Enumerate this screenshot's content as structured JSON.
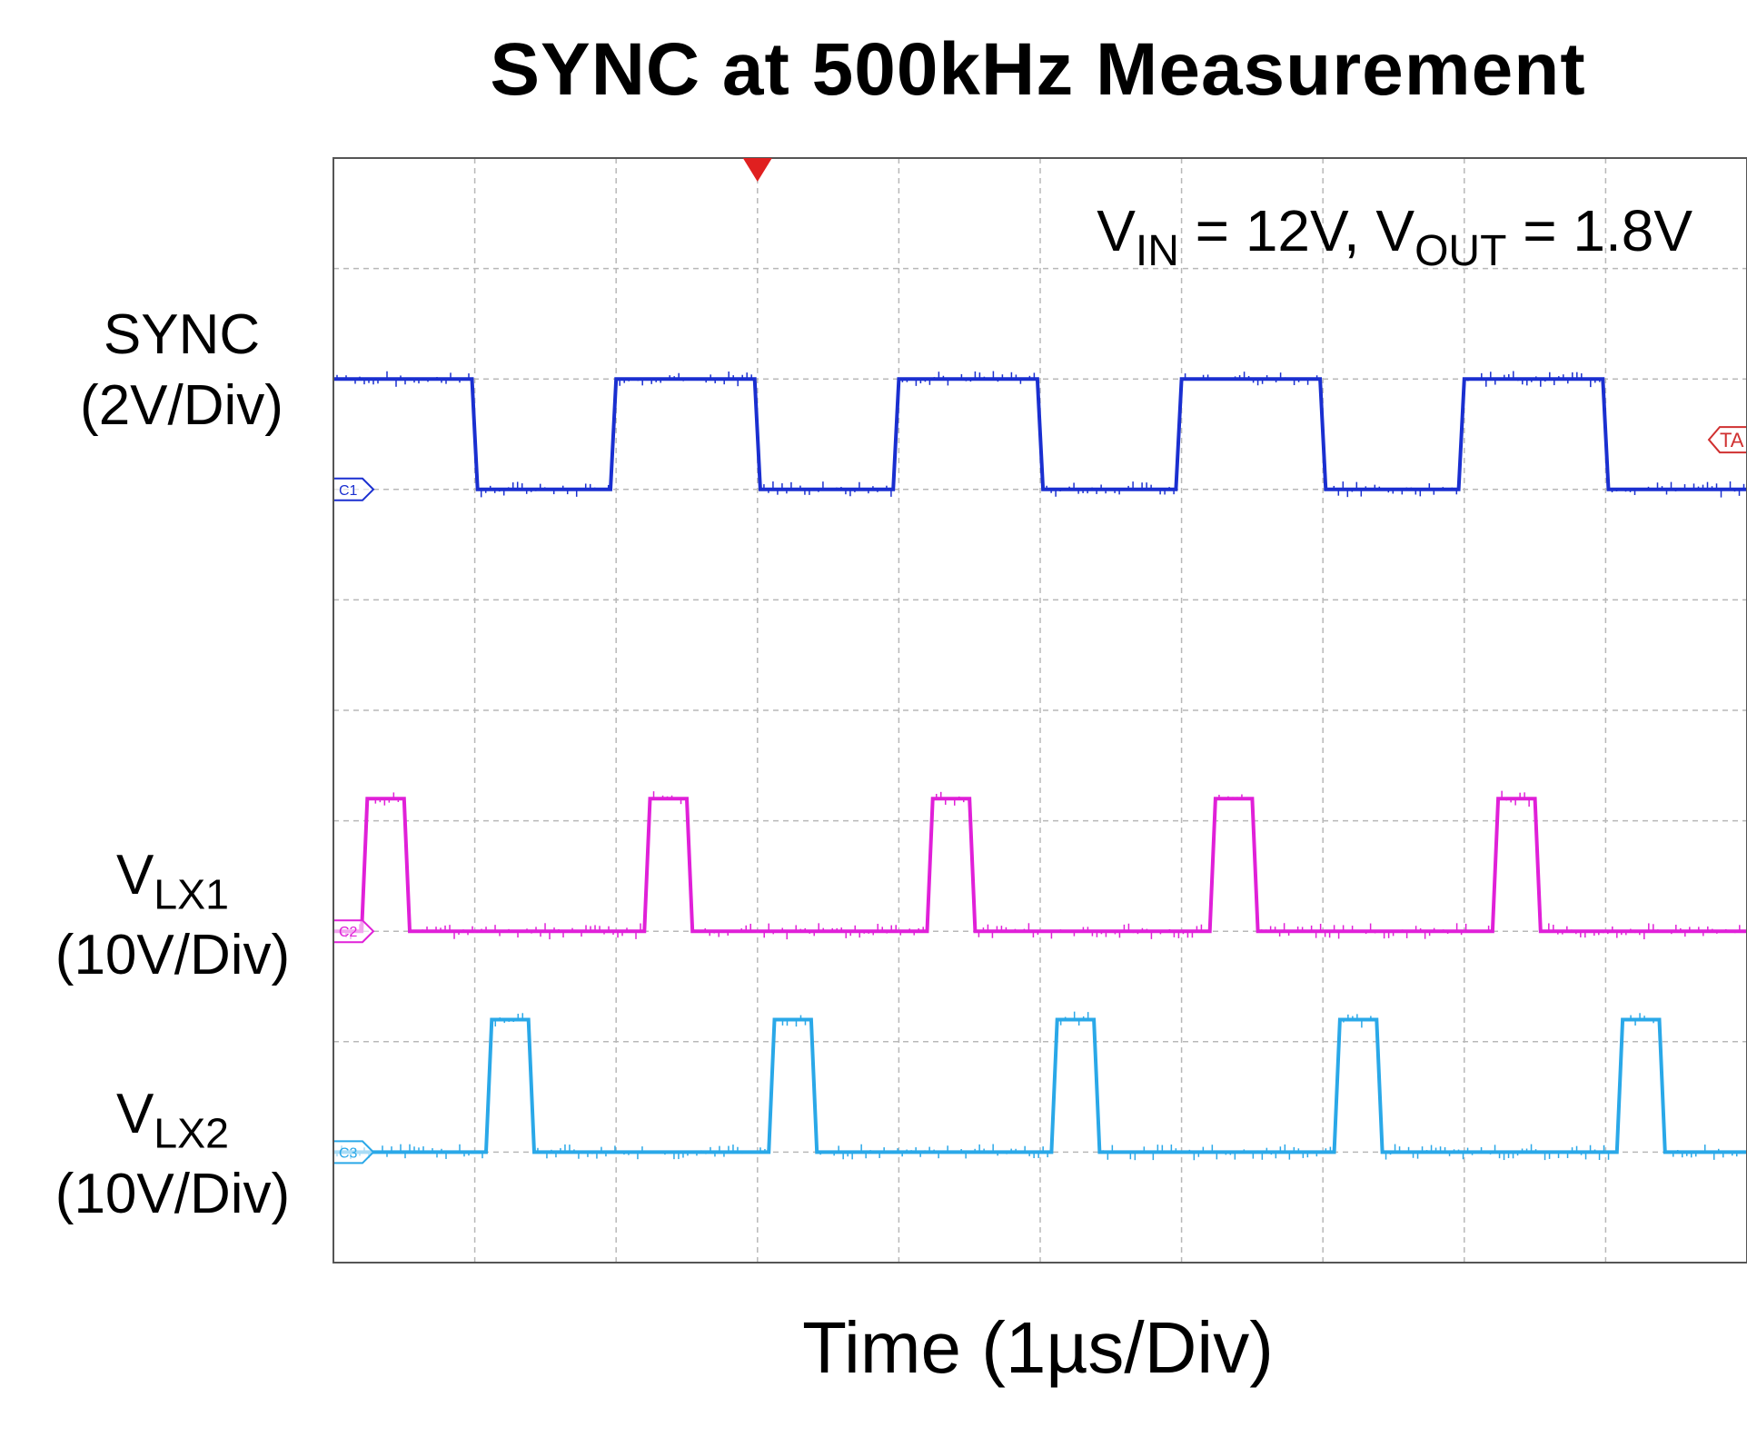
{
  "chart_data": {
    "type": "line",
    "title": "SYNC at 500kHz Measurement",
    "xlabel": "Time (1µs/Div)",
    "annotation": {
      "vin_symbol": "V",
      "vin_sub": "IN",
      "vin_value": " = 12V, ",
      "vout_symbol": "V",
      "vout_sub": "OUT",
      "vout_value": " = 1.8V"
    },
    "x_unit": "div",
    "y_unit": "div",
    "xlim": [
      0,
      10
    ],
    "ylim": [
      0,
      10
    ],
    "divisions": {
      "x": 10,
      "y": 10
    },
    "grid": true,
    "trigger_position_div": 3,
    "series": [
      {
        "name": "SYNC",
        "label_main": "SYNC",
        "label_scale": "(2V/Div)",
        "color": "#1a2fd0",
        "marker_text": "C1",
        "baseline_div": 7.0,
        "low_div": 7.0,
        "high_div": 8.0,
        "points": [
          [
            0,
            8.0
          ],
          [
            0.98,
            8.0
          ],
          [
            1.02,
            7.0
          ],
          [
            1.96,
            7.0
          ],
          [
            2.0,
            8.0
          ],
          [
            2.98,
            8.0
          ],
          [
            3.02,
            7.0
          ],
          [
            3.96,
            7.0
          ],
          [
            4.0,
            8.0
          ],
          [
            4.98,
            8.0
          ],
          [
            5.02,
            7.0
          ],
          [
            5.96,
            7.0
          ],
          [
            6.0,
            8.0
          ],
          [
            6.98,
            8.0
          ],
          [
            7.02,
            7.0
          ],
          [
            7.96,
            7.0
          ],
          [
            8.0,
            8.0
          ],
          [
            8.98,
            8.0
          ],
          [
            9.02,
            7.0
          ],
          [
            10,
            7.0
          ]
        ]
      },
      {
        "name": "VLX1",
        "label_main": "V",
        "label_sub": "LX1",
        "label_scale": "(10V/Div)",
        "color": "#e020d8",
        "marker_text": "C2",
        "baseline_div": 3.0,
        "points": [
          [
            0,
            3.0
          ],
          [
            0.2,
            3.0
          ],
          [
            0.24,
            4.2
          ],
          [
            0.5,
            4.2
          ],
          [
            0.54,
            3.0
          ],
          [
            2.2,
            3.0
          ],
          [
            2.24,
            4.2
          ],
          [
            2.5,
            4.2
          ],
          [
            2.54,
            3.0
          ],
          [
            4.2,
            3.0
          ],
          [
            4.24,
            4.2
          ],
          [
            4.5,
            4.2
          ],
          [
            4.54,
            3.0
          ],
          [
            6.2,
            3.0
          ],
          [
            6.24,
            4.2
          ],
          [
            6.5,
            4.2
          ],
          [
            6.54,
            3.0
          ],
          [
            8.2,
            3.0
          ],
          [
            8.24,
            4.2
          ],
          [
            8.5,
            4.2
          ],
          [
            8.54,
            3.0
          ],
          [
            10,
            3.0
          ]
        ]
      },
      {
        "name": "VLX2",
        "label_main": "V",
        "label_sub": "LX2",
        "label_scale": "(10V/Div)",
        "color": "#2aa8e8",
        "marker_text": "C3",
        "baseline_div": 1.0,
        "points": [
          [
            0,
            1.0
          ],
          [
            1.08,
            1.0
          ],
          [
            1.12,
            2.2
          ],
          [
            1.38,
            2.2
          ],
          [
            1.42,
            1.0
          ],
          [
            3.08,
            1.0
          ],
          [
            3.12,
            2.2
          ],
          [
            3.38,
            2.2
          ],
          [
            3.42,
            1.0
          ],
          [
            5.08,
            1.0
          ],
          [
            5.12,
            2.2
          ],
          [
            5.38,
            2.2
          ],
          [
            5.42,
            1.0
          ],
          [
            7.08,
            1.0
          ],
          [
            7.12,
            2.2
          ],
          [
            7.38,
            2.2
          ],
          [
            7.42,
            1.0
          ],
          [
            9.08,
            1.0
          ],
          [
            9.12,
            2.2
          ],
          [
            9.38,
            2.2
          ],
          [
            9.42,
            1.0
          ],
          [
            10,
            1.0
          ]
        ]
      }
    ],
    "trigger_marker": {
      "text": "TA",
      "level_div": 7.45,
      "color": "#d03030"
    }
  }
}
